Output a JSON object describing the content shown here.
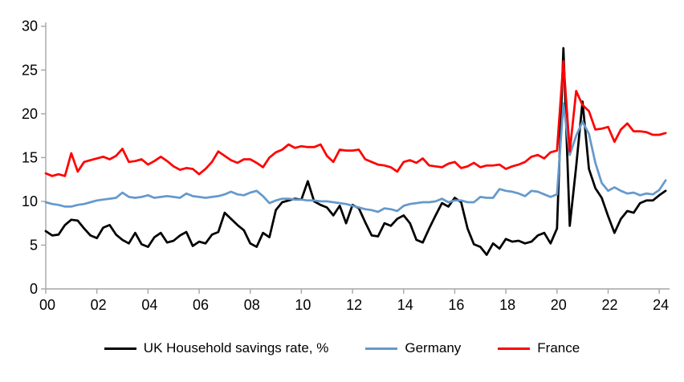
{
  "chart_data": {
    "type": "line",
    "title": "",
    "xlabel": "",
    "ylabel": "",
    "ylim": [
      0,
      30
    ],
    "y_ticks": [
      0,
      5,
      10,
      15,
      20,
      25,
      30
    ],
    "x_tick_labels": [
      "00",
      "02",
      "04",
      "06",
      "08",
      "10",
      "12",
      "14",
      "16",
      "18",
      "20",
      "22",
      "24"
    ],
    "x_start_year": 2000,
    "frequency": "quarterly",
    "grid": false,
    "legend_position": "bottom",
    "axis_color": "#A6A6A6",
    "series": [
      {
        "name": "UK Household savings rate, %",
        "color": "#000000",
        "values": [
          6.6,
          6.1,
          6.2,
          7.3,
          7.9,
          7.8,
          6.9,
          6.1,
          5.8,
          7.0,
          7.3,
          6.2,
          5.6,
          5.2,
          6.4,
          5.1,
          4.8,
          5.9,
          6.4,
          5.3,
          5.5,
          6.1,
          6.5,
          4.9,
          5.4,
          5.2,
          6.2,
          6.5,
          8.7,
          8.0,
          7.3,
          6.7,
          5.2,
          4.8,
          6.4,
          5.9,
          9.0,
          9.9,
          10.1,
          10.3,
          10.2,
          12.3,
          10.0,
          9.6,
          9.3,
          8.4,
          9.5,
          7.5,
          9.6,
          9.2,
          7.6,
          6.1,
          6.0,
          7.5,
          7.2,
          8.0,
          8.4,
          7.5,
          5.6,
          5.3,
          6.9,
          8.4,
          9.8,
          9.4,
          10.4,
          9.9,
          6.9,
          5.1,
          4.8,
          3.9,
          5.2,
          4.6,
          5.7,
          5.4,
          5.5,
          5.2,
          5.4,
          6.1,
          6.4,
          5.2,
          6.9,
          27.5,
          7.2,
          14.0,
          21.4,
          13.7,
          11.5,
          10.4,
          8.3,
          6.4,
          8.0,
          8.9,
          8.7,
          9.8,
          10.1,
          10.1,
          10.7,
          11.2
        ]
      },
      {
        "name": "Germany",
        "color": "#6699CC",
        "values": [
          9.9,
          9.7,
          9.6,
          9.4,
          9.4,
          9.6,
          9.7,
          9.9,
          10.1,
          10.2,
          10.3,
          10.4,
          11.0,
          10.5,
          10.4,
          10.5,
          10.7,
          10.4,
          10.5,
          10.6,
          10.5,
          10.4,
          10.9,
          10.6,
          10.5,
          10.4,
          10.5,
          10.6,
          10.8,
          11.1,
          10.8,
          10.7,
          11.0,
          11.2,
          10.6,
          9.8,
          10.1,
          10.3,
          10.3,
          10.2,
          10.2,
          10.1,
          10.1,
          10.0,
          10.0,
          9.9,
          9.8,
          9.7,
          9.5,
          9.3,
          9.1,
          9.0,
          8.8,
          9.2,
          9.1,
          8.9,
          9.5,
          9.7,
          9.8,
          9.9,
          9.9,
          10.0,
          10.3,
          9.9,
          10.1,
          10.1,
          9.9,
          9.9,
          10.5,
          10.4,
          10.4,
          11.4,
          11.2,
          11.1,
          10.9,
          10.6,
          11.2,
          11.1,
          10.8,
          10.5,
          10.8,
          21.2,
          15.3,
          17.5,
          19.1,
          17.7,
          14.4,
          12.1,
          11.2,
          11.6,
          11.2,
          10.9,
          11.0,
          10.7,
          10.9,
          10.8,
          11.3,
          12.4
        ]
      },
      {
        "name": "France",
        "color": "#FF0000",
        "values": [
          13.2,
          12.9,
          13.1,
          12.9,
          15.5,
          13.4,
          14.5,
          14.7,
          14.9,
          15.1,
          14.8,
          15.2,
          16.0,
          14.5,
          14.6,
          14.8,
          14.2,
          14.6,
          15.1,
          14.6,
          14.0,
          13.6,
          13.8,
          13.7,
          13.1,
          13.7,
          14.5,
          15.7,
          15.2,
          14.7,
          14.4,
          14.8,
          14.8,
          14.4,
          13.9,
          15.0,
          15.6,
          15.9,
          16.5,
          16.1,
          16.3,
          16.2,
          16.2,
          16.5,
          15.2,
          14.5,
          15.9,
          15.8,
          15.8,
          15.9,
          14.8,
          14.5,
          14.2,
          14.1,
          13.9,
          13.4,
          14.5,
          14.7,
          14.4,
          14.9,
          14.1,
          14.0,
          13.9,
          14.3,
          14.5,
          13.8,
          14.0,
          14.4,
          13.9,
          14.1,
          14.1,
          14.2,
          13.7,
          14.0,
          14.2,
          14.5,
          15.1,
          15.3,
          14.9,
          15.6,
          15.8,
          26.0,
          15.7,
          22.6,
          21.0,
          20.3,
          18.2,
          18.3,
          18.5,
          16.8,
          18.2,
          18.9,
          18.0,
          18.0,
          17.9,
          17.6,
          17.6,
          17.8
        ]
      }
    ]
  },
  "legend": {
    "uk_label": "UK Household savings rate, %",
    "germany_label": "Germany",
    "france_label": "France"
  }
}
